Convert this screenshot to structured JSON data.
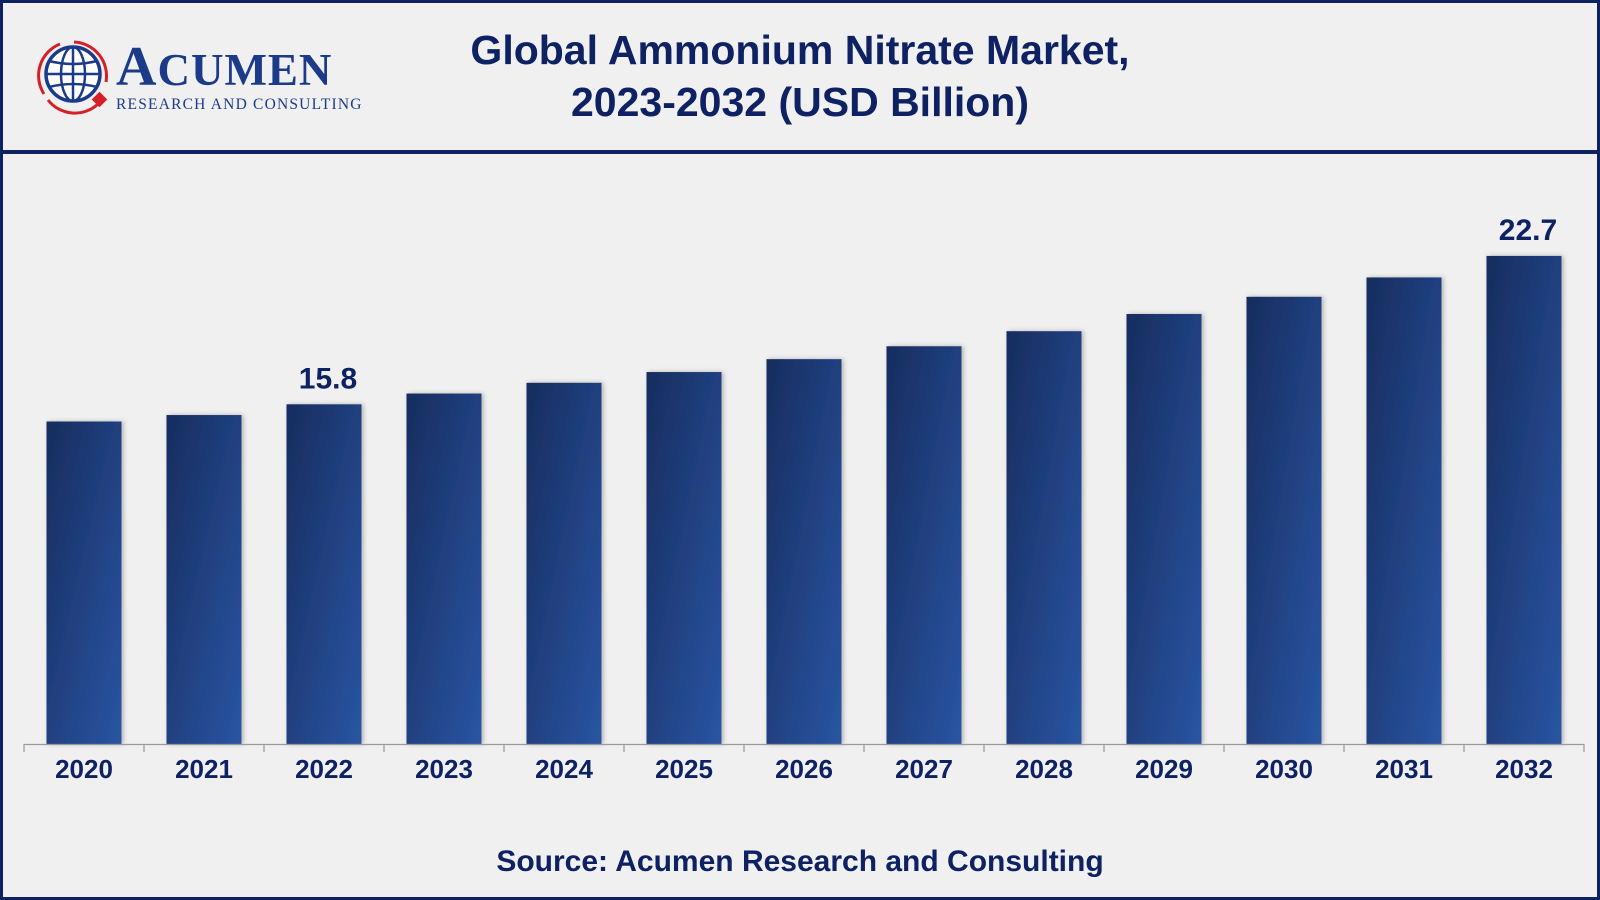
{
  "logo": {
    "wordmark_first": "A",
    "wordmark_rest": "CUMEN",
    "subtitle": "RESEARCH AND CONSULTING",
    "icon": "globe-icon"
  },
  "header": {
    "title_line1": "Global Ammonium Nitrate Market,",
    "title_line2": "2023-2032 (USD Billion)"
  },
  "footer": {
    "source": "Source: Acumen Research and Consulting"
  },
  "colors": {
    "bar_dark": "#1a3266",
    "bar_light": "#2a55a3",
    "text": "#0d2163",
    "border": "#0d2163",
    "logo_red": "#d62027"
  },
  "chart_data": {
    "type": "bar",
    "title": "Global Ammonium Nitrate Market, 2023-2032 (USD Billion)",
    "xlabel": "",
    "ylabel": "USD Billion",
    "categories": [
      "2020",
      "2021",
      "2022",
      "2023",
      "2024",
      "2025",
      "2026",
      "2027",
      "2028",
      "2029",
      "2030",
      "2031",
      "2032"
    ],
    "values": [
      15.0,
      15.3,
      15.8,
      16.3,
      16.8,
      17.3,
      17.9,
      18.5,
      19.2,
      20.0,
      20.8,
      21.7,
      22.7
    ],
    "data_labels": [
      {
        "category": "2022",
        "text": "15.8"
      },
      {
        "category": "2032",
        "text": "22.7"
      }
    ],
    "ylim": [
      0,
      24
    ],
    "grid": false,
    "legend": "none",
    "source": "Source: Acumen Research and Consulting"
  }
}
